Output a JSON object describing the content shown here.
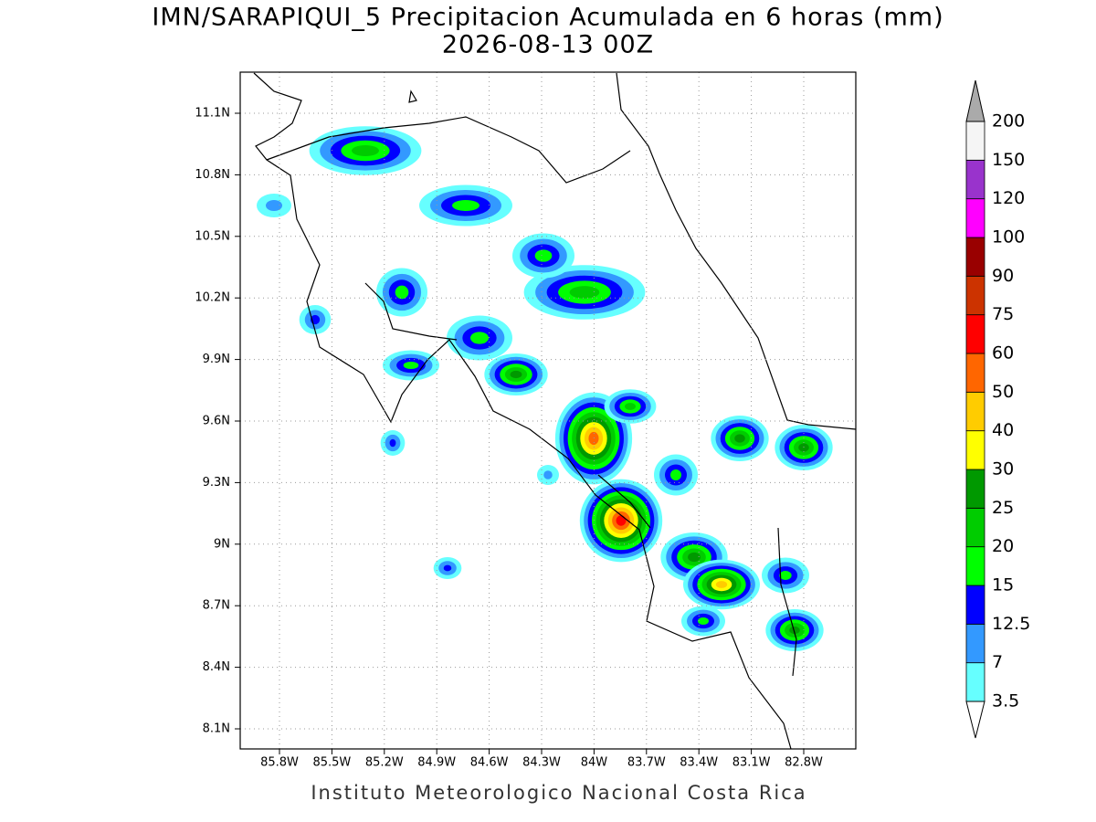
{
  "title": "IMN/SARAPIQUI_5 Precipitacion Acumulada en 6 horas (mm)",
  "subtitle": "2026-08-13 00Z",
  "lat_labels": [
    "11.1N",
    "10.8N",
    "10.5N",
    "10.2N",
    "9.9N",
    "9.6N",
    "9.3N",
    "9N",
    "8.7N",
    "8.4N",
    "8.1N"
  ],
  "lon_labels": [
    "85.8W",
    "85.5W",
    "85.2W",
    "84.9W",
    "84.6W",
    "84.3W",
    "84W",
    "83.7W",
    "83.4W",
    "83.1W",
    "82.8W"
  ],
  "colorbar": {
    "levels": [
      3.5,
      7,
      12.5,
      15,
      20,
      25,
      30,
      40,
      50,
      60,
      75,
      90,
      100,
      120,
      150,
      200
    ],
    "colors": [
      "#66ffff",
      "#3399ff",
      "#0000ff",
      "#00ff00",
      "#00cc00",
      "#009900",
      "#ffff00",
      "#ffcc00",
      "#ff6600",
      "#ff0000",
      "#cc3300",
      "#990000",
      "#ff00ff",
      "#9933cc",
      "#f5f5f5"
    ],
    "over_color": "#aaaaaa",
    "under_color": "#ffffff"
  },
  "footer": "Instituto Meteorologico Nacional Costa Rica"
}
